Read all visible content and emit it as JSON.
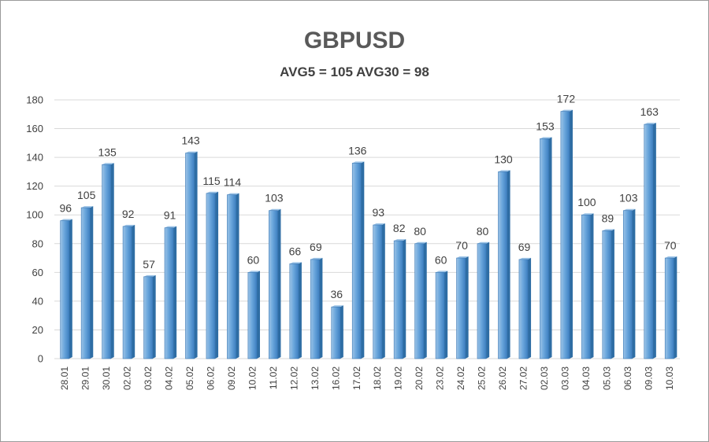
{
  "chart_data": {
    "type": "bar",
    "title": "GBPUSD",
    "subtitle": "AVG5 = 105 AVG30 = 98",
    "xlabel": "",
    "ylabel": "",
    "ylim": [
      0,
      180
    ],
    "yticks": [
      0,
      20,
      40,
      60,
      80,
      100,
      120,
      140,
      160,
      180
    ],
    "grid": true,
    "legend": "none",
    "colors": {
      "bar": "#5b9bd5",
      "bar_dark": "#2e6da4",
      "bar_light": "#9cc3e6",
      "grid": "#d9d9d9",
      "text": "#404040"
    },
    "categories": [
      "28.01",
      "29.01",
      "30.01",
      "02.02",
      "03.02",
      "04.02",
      "05.02",
      "06.02",
      "09.02",
      "10.02",
      "11.02",
      "12.02",
      "13.02",
      "16.02",
      "17.02",
      "18.02",
      "19.02",
      "20.02",
      "23.02",
      "24.02",
      "25.02",
      "26.02",
      "27.02",
      "02.03",
      "03.03",
      "04.03",
      "05.03",
      "06.03",
      "09.03",
      "10.03"
    ],
    "values": [
      96,
      105,
      135,
      92,
      57,
      91,
      143,
      115,
      114,
      60,
      103,
      66,
      69,
      36,
      136,
      93,
      82,
      80,
      60,
      70,
      80,
      130,
      69,
      153,
      172,
      100,
      89,
      103,
      163,
      70
    ]
  }
}
